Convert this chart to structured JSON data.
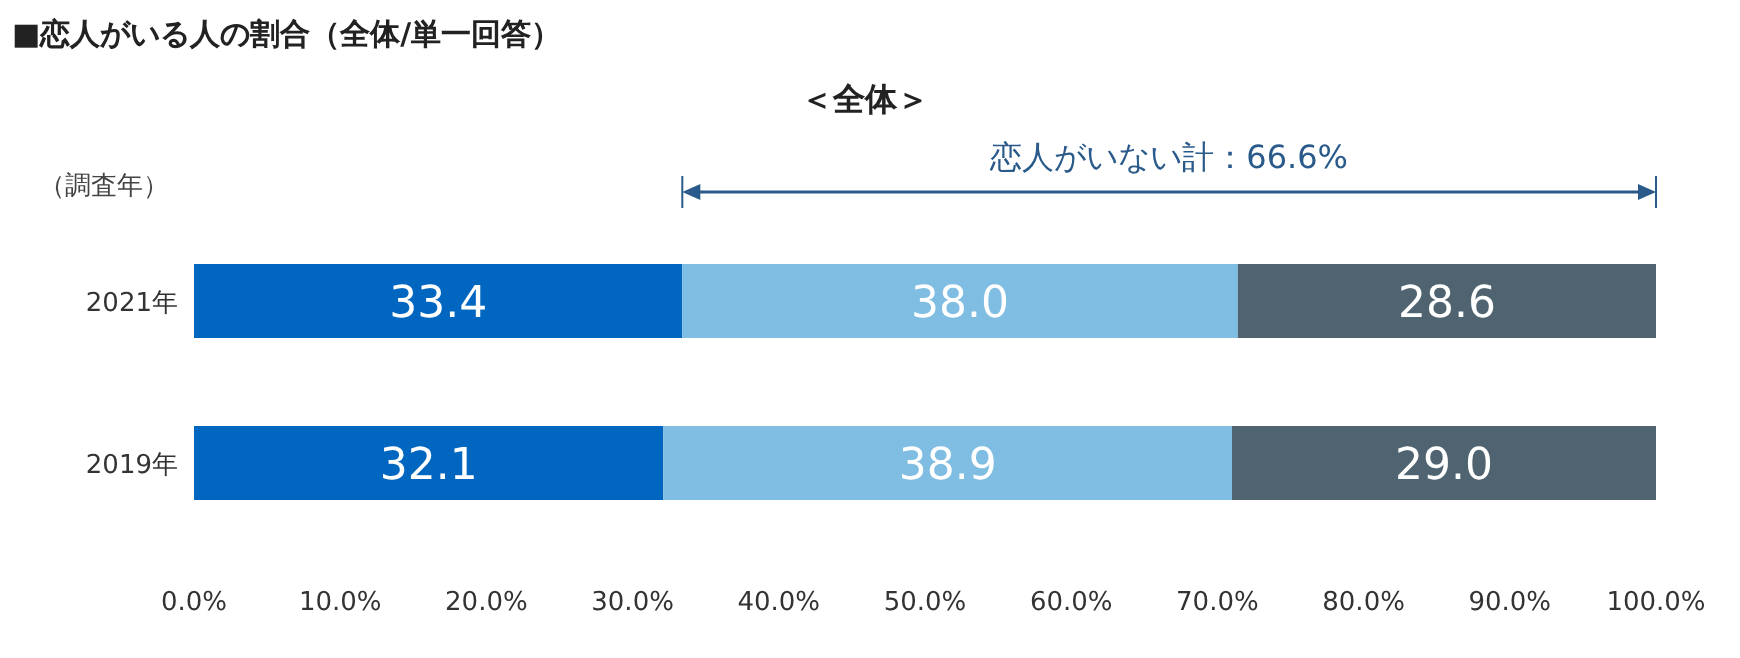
{
  "chart_data": {
    "type": "bar",
    "orientation": "horizontal",
    "stacked": true,
    "title": "■恋人がいる人の割合（全体/単一回答）",
    "subtitle": "＜全体＞",
    "ylabel": "（調査年）",
    "categories": [
      "2021年",
      "2019年"
    ],
    "series": [
      {
        "color": "#0066c0",
        "values": [
          33.4,
          32.1
        ],
        "value_labels": [
          "33.4",
          "32.1"
        ]
      },
      {
        "color": "#7fbde2",
        "values": [
          38.0,
          38.9
        ],
        "value_labels": [
          "38.0",
          "38.9"
        ]
      },
      {
        "color": "#4f6470",
        "values": [
          28.6,
          29.0
        ],
        "value_labels": [
          "28.6",
          "29.0"
        ]
      }
    ],
    "xlim": [
      0,
      100
    ],
    "xticks": [
      {
        "value": 0,
        "label": "0.0%"
      },
      {
        "value": 10,
        "label": "10.0%"
      },
      {
        "value": 20,
        "label": "20.0%"
      },
      {
        "value": 30,
        "label": "30.0%"
      },
      {
        "value": 40,
        "label": "40.0%"
      },
      {
        "value": 50,
        "label": "50.0%"
      },
      {
        "value": 60,
        "label": "60.0%"
      },
      {
        "value": 70,
        "label": "70.0%"
      },
      {
        "value": 80,
        "label": "80.0%"
      },
      {
        "value": 90,
        "label": "90.0%"
      },
      {
        "value": 100,
        "label": "100.0%"
      }
    ],
    "annotations": [
      "恋人がいない計：66.6%"
    ]
  }
}
